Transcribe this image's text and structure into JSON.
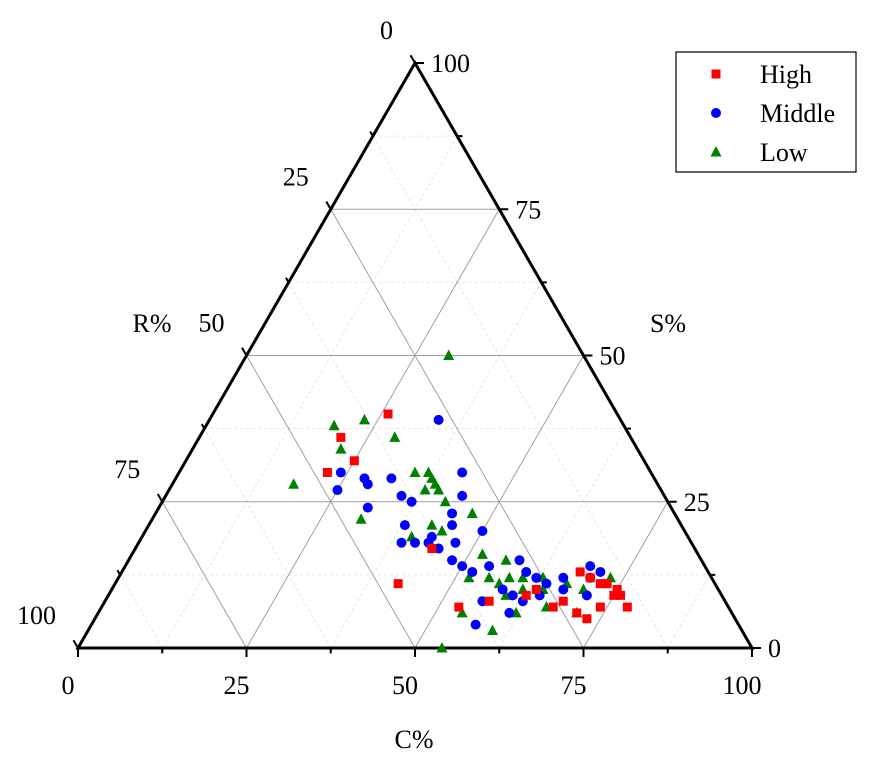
{
  "chart_data": {
    "type": "scatter",
    "subtype": "ternary",
    "title": "",
    "axes": {
      "C": {
        "label": "C%",
        "ticks": [
          "0",
          "25",
          "50",
          "75",
          "100"
        ],
        "range": [
          0,
          100
        ]
      },
      "S": {
        "label": "S%",
        "ticks": [
          "0",
          "25",
          "50",
          "75",
          "100"
        ],
        "range": [
          0,
          100
        ]
      },
      "R": {
        "label": "R%",
        "ticks": [
          "0",
          "25",
          "50",
          "75",
          "100"
        ],
        "range": [
          0,
          100
        ]
      }
    },
    "grid": true,
    "legend_position": "top-right",
    "series": [
      {
        "name": "High",
        "marker": "square",
        "color": "#ff0000",
        "points": [
          {
            "C": 21,
            "S": 36,
            "R": 43
          },
          {
            "C": 26,
            "S": 40,
            "R": 34
          },
          {
            "C": 25,
            "S": 32,
            "R": 43
          },
          {
            "C": 22,
            "S": 30,
            "R": 48
          },
          {
            "C": 44,
            "S": 17,
            "R": 39
          },
          {
            "C": 42,
            "S": 11,
            "R": 47
          },
          {
            "C": 53,
            "S": 7,
            "R": 40
          },
          {
            "C": 57,
            "S": 8,
            "R": 35
          },
          {
            "C": 62,
            "S": 9,
            "R": 29
          },
          {
            "C": 63,
            "S": 10,
            "R": 27
          },
          {
            "C": 68,
            "S": 13,
            "R": 19
          },
          {
            "C": 70,
            "S": 12,
            "R": 18
          },
          {
            "C": 72,
            "S": 11,
            "R": 17
          },
          {
            "C": 75,
            "S": 9,
            "R": 16
          },
          {
            "C": 76,
            "S": 9,
            "R": 15
          },
          {
            "C": 75,
            "S": 10,
            "R": 15
          },
          {
            "C": 73,
            "S": 11,
            "R": 16
          },
          {
            "C": 74,
            "S": 7,
            "R": 19
          },
          {
            "C": 78,
            "S": 7,
            "R": 15
          },
          {
            "C": 71,
            "S": 6,
            "R": 23
          },
          {
            "C": 68,
            "S": 8,
            "R": 24
          },
          {
            "C": 67,
            "S": 7,
            "R": 26
          },
          {
            "C": 73,
            "S": 5,
            "R": 22
          }
        ]
      },
      {
        "name": "Middle",
        "marker": "circle",
        "color": "#0000ff",
        "points": [
          {
            "C": 34,
            "S": 39,
            "R": 27
          },
          {
            "C": 24,
            "S": 30,
            "R": 46
          },
          {
            "C": 25,
            "S": 27,
            "R": 48
          },
          {
            "C": 28,
            "S": 29,
            "R": 43
          },
          {
            "C": 29,
            "S": 28,
            "R": 43
          },
          {
            "C": 32,
            "S": 29,
            "R": 39
          },
          {
            "C": 42,
            "S": 30,
            "R": 28
          },
          {
            "C": 44,
            "S": 26,
            "R": 30
          },
          {
            "C": 35,
            "S": 26,
            "R": 39
          },
          {
            "C": 37,
            "S": 25,
            "R": 38
          },
          {
            "C": 31,
            "S": 24,
            "R": 45
          },
          {
            "C": 38,
            "S": 21,
            "R": 41
          },
          {
            "C": 44,
            "S": 23,
            "R": 33
          },
          {
            "C": 45,
            "S": 21,
            "R": 34
          },
          {
            "C": 43,
            "S": 19,
            "R": 38
          },
          {
            "C": 50,
            "S": 20,
            "R": 30
          },
          {
            "C": 39,
            "S": 18,
            "R": 43
          },
          {
            "C": 41,
            "S": 18,
            "R": 41
          },
          {
            "C": 43,
            "S": 18,
            "R": 39
          },
          {
            "C": 45,
            "S": 17,
            "R": 38
          },
          {
            "C": 47,
            "S": 18,
            "R": 35
          },
          {
            "C": 48,
            "S": 15,
            "R": 37
          },
          {
            "C": 50,
            "S": 14,
            "R": 36
          },
          {
            "C": 52,
            "S": 13,
            "R": 35
          },
          {
            "C": 54,
            "S": 14,
            "R": 32
          },
          {
            "C": 58,
            "S": 15,
            "R": 27
          },
          {
            "C": 60,
            "S": 13,
            "R": 27
          },
          {
            "C": 62,
            "S": 12,
            "R": 26
          },
          {
            "C": 64,
            "S": 11,
            "R": 25
          },
          {
            "C": 66,
            "S": 12,
            "R": 22
          },
          {
            "C": 67,
            "S": 10,
            "R": 23
          },
          {
            "C": 58,
            "S": 10,
            "R": 32
          },
          {
            "C": 60,
            "S": 9,
            "R": 31
          },
          {
            "C": 62,
            "S": 8,
            "R": 30
          },
          {
            "C": 64,
            "S": 9,
            "R": 27
          },
          {
            "C": 61,
            "S": 6,
            "R": 33
          },
          {
            "C": 57,
            "S": 4,
            "R": 39
          },
          {
            "C": 56,
            "S": 8,
            "R": 36
          },
          {
            "C": 70,
            "S": 12,
            "R": 18
          },
          {
            "C": 71,
            "S": 13,
            "R": 16
          },
          {
            "C": 69,
            "S": 14,
            "R": 17
          },
          {
            "C": 71,
            "S": 9,
            "R": 20
          }
        ]
      },
      {
        "name": "Low",
        "marker": "triangle",
        "color": "#008000",
        "points": [
          {
            "C": 30,
            "S": 50,
            "R": 20
          },
          {
            "C": 19,
            "S": 38,
            "R": 43
          },
          {
            "C": 23,
            "S": 39,
            "R": 38
          },
          {
            "C": 29,
            "S": 36,
            "R": 35
          },
          {
            "C": 22,
            "S": 34,
            "R": 44
          },
          {
            "C": 18,
            "S": 28,
            "R": 54
          },
          {
            "C": 35,
            "S": 30,
            "R": 35
          },
          {
            "C": 37,
            "S": 30,
            "R": 33
          },
          {
            "C": 38,
            "S": 29,
            "R": 33
          },
          {
            "C": 39,
            "S": 28,
            "R": 33
          },
          {
            "C": 40,
            "S": 27,
            "R": 33
          },
          {
            "C": 42,
            "S": 25,
            "R": 33
          },
          {
            "C": 38,
            "S": 27,
            "R": 35
          },
          {
            "C": 31,
            "S": 22,
            "R": 47
          },
          {
            "C": 42,
            "S": 21,
            "R": 37
          },
          {
            "C": 47,
            "S": 23,
            "R": 30
          },
          {
            "C": 40,
            "S": 19,
            "R": 41
          },
          {
            "C": 44,
            "S": 20,
            "R": 36
          },
          {
            "C": 52,
            "S": 16,
            "R": 32
          },
          {
            "C": 56,
            "S": 15,
            "R": 29
          },
          {
            "C": 52,
            "S": 12,
            "R": 36
          },
          {
            "C": 55,
            "S": 12,
            "R": 33
          },
          {
            "C": 58,
            "S": 12,
            "R": 30
          },
          {
            "C": 60,
            "S": 12,
            "R": 28
          },
          {
            "C": 63,
            "S": 12,
            "R": 25
          },
          {
            "C": 61,
            "S": 10,
            "R": 29
          },
          {
            "C": 64,
            "S": 10,
            "R": 26
          },
          {
            "C": 67,
            "S": 11,
            "R": 22
          },
          {
            "C": 70,
            "S": 10,
            "R": 20
          },
          {
            "C": 66,
            "S": 7,
            "R": 27
          },
          {
            "C": 71,
            "S": 6,
            "R": 23
          },
          {
            "C": 62,
            "S": 6,
            "R": 32
          },
          {
            "C": 54,
            "S": 6,
            "R": 40
          },
          {
            "C": 60,
            "S": 3,
            "R": 37
          },
          {
            "C": 54,
            "S": 0,
            "R": 46
          },
          {
            "C": 73,
            "S": 12,
            "R": 15
          },
          {
            "C": 57,
            "S": 11,
            "R": 32
          },
          {
            "C": 59,
            "S": 9,
            "R": 32
          }
        ]
      }
    ]
  }
}
